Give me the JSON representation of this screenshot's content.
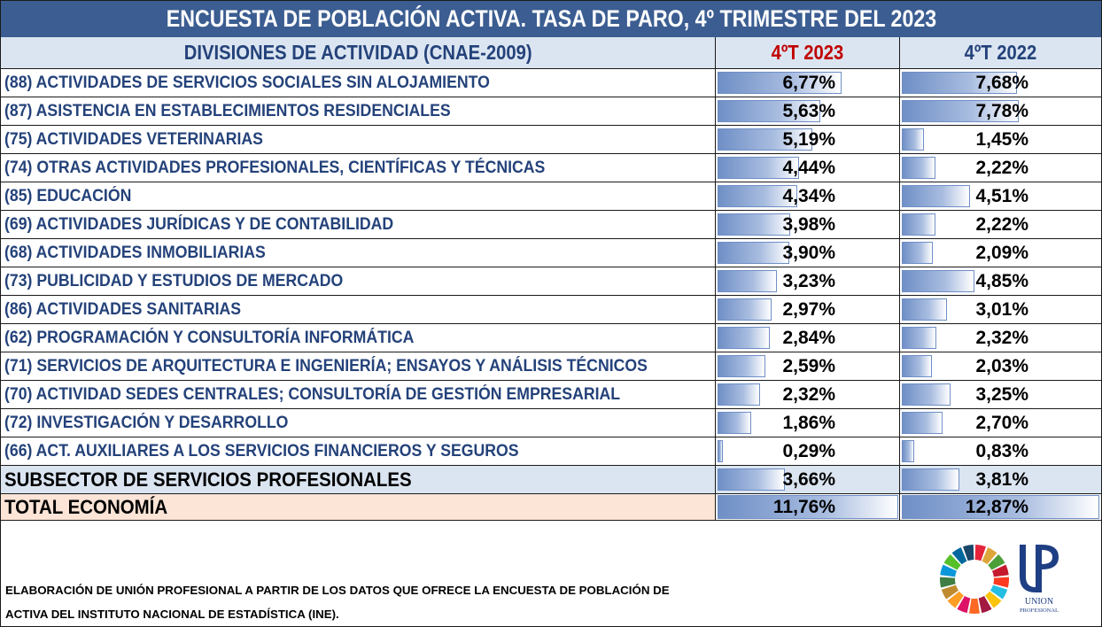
{
  "title": "ENCUESTA DE POBLACIÓN ACTIVA. TASA DE PARO, 4º TRIMESTRE DEL 2023",
  "chart_data": {
    "type": "table",
    "headers": {
      "category": "DIVISIONES DE ACTIVIDAD (CNAE-2009)",
      "col_2023": "4ºT 2023",
      "col_2022": "4ºT 2022"
    },
    "rows": [
      {
        "label": "(88) ACTIVIDADES DE SERVICIOS SOCIALES SIN ALOJAMIENTO",
        "v2023": 6.77,
        "t2023": "6,77%",
        "v2022": 7.68,
        "t2022": "7,68%"
      },
      {
        "label": "(87) ASISTENCIA EN ESTABLECIMIENTOS RESIDENCIALES",
        "v2023": 5.63,
        "t2023": "5,63%",
        "v2022": 7.78,
        "t2022": "7,78%"
      },
      {
        "label": "(75) ACTIVIDADES VETERINARIAS",
        "v2023": 5.19,
        "t2023": "5,19%",
        "v2022": 1.45,
        "t2022": "1,45%"
      },
      {
        "label": "(74) OTRAS ACTIVIDADES PROFESIONALES, CIENTÍFICAS Y TÉCNICAS",
        "v2023": 4.44,
        "t2023": "4,44%",
        "v2022": 2.22,
        "t2022": "2,22%"
      },
      {
        "label": "(85) EDUCACIÓN",
        "v2023": 4.34,
        "t2023": "4,34%",
        "v2022": 4.51,
        "t2022": "4,51%"
      },
      {
        "label": "(69) ACTIVIDADES JURÍDICAS Y DE CONTABILIDAD",
        "v2023": 3.98,
        "t2023": "3,98%",
        "v2022": 2.22,
        "t2022": "2,22%"
      },
      {
        "label": "(68) ACTIVIDADES INMOBILIARIAS",
        "v2023": 3.9,
        "t2023": "3,90%",
        "v2022": 2.09,
        "t2022": "2,09%"
      },
      {
        "label": "(73) PUBLICIDAD Y ESTUDIOS DE MERCADO",
        "v2023": 3.23,
        "t2023": "3,23%",
        "v2022": 4.85,
        "t2022": "4,85%"
      },
      {
        "label": "(86) ACTIVIDADES SANITARIAS",
        "v2023": 2.97,
        "t2023": "2,97%",
        "v2022": 3.01,
        "t2022": "3,01%"
      },
      {
        "label": "(62) PROGRAMACIÓN Y CONSULTORÍA INFORMÁTICA",
        "v2023": 2.84,
        "t2023": "2,84%",
        "v2022": 2.32,
        "t2022": "2,32%"
      },
      {
        "label": "(71) SERVICIOS DE ARQUITECTURA E INGENIERÍA; ENSAYOS Y ANÁLISIS TÉCNICOS",
        "v2023": 2.59,
        "t2023": "2,59%",
        "v2022": 2.03,
        "t2022": "2,03%"
      },
      {
        "label": "(70) ACTIVIDAD SEDES CENTRALES; CONSULTORÍA DE GESTIÓN EMPRESARIAL",
        "v2023": 2.32,
        "t2023": "2,32%",
        "v2022": 3.25,
        "t2022": "3,25%"
      },
      {
        "label": "(72) INVESTIGACIÓN Y DESARROLLO",
        "v2023": 1.86,
        "t2023": "1,86%",
        "v2022": 2.7,
        "t2022": "2,70%"
      },
      {
        "label": "(66) ACT. AUXILIARES A LOS SERVICIOS FINANCIEROS Y SEGUROS",
        "v2023": 0.29,
        "t2023": "0,29%",
        "v2022": 0.83,
        "t2022": "0,83%"
      }
    ],
    "subsector": {
      "label": "SUBSECTOR DE SERVICIOS PROFESIONALES",
      "v2023": 3.66,
      "t2023": "3,66%",
      "v2022": 3.81,
      "t2022": "3,81%"
    },
    "total": {
      "label": "TOTAL ECONOMÍA",
      "v2023": 11.76,
      "t2023": "11,76%",
      "v2022": 12.87,
      "t2022": "12,87%"
    },
    "bar_scale_max": 12.87
  },
  "footer": {
    "line1": "ELABORACIÓN DE UNIÓN PROFESIONAL A PARTIR DE LOS DATOS QUE OFRECE LA ENCUESTA DE POBLACIÓN DE",
    "line2": "ACTIVA DEL INSTITUTO NACIONAL DE ESTADÍSTICA (INE)."
  },
  "logos": {
    "sdg": "sdg-wheel-icon",
    "union": {
      "mark": "UP",
      "text1": "UNION",
      "text2": "PROFESIONAL"
    }
  },
  "colors": {
    "title_bg": "#3b5d91",
    "header_bg": "#dbe5f1",
    "label_text": "#24427a",
    "highlight_red": "#c00000",
    "total_bg": "#fce4d6",
    "bar": "#6f8fc6"
  }
}
